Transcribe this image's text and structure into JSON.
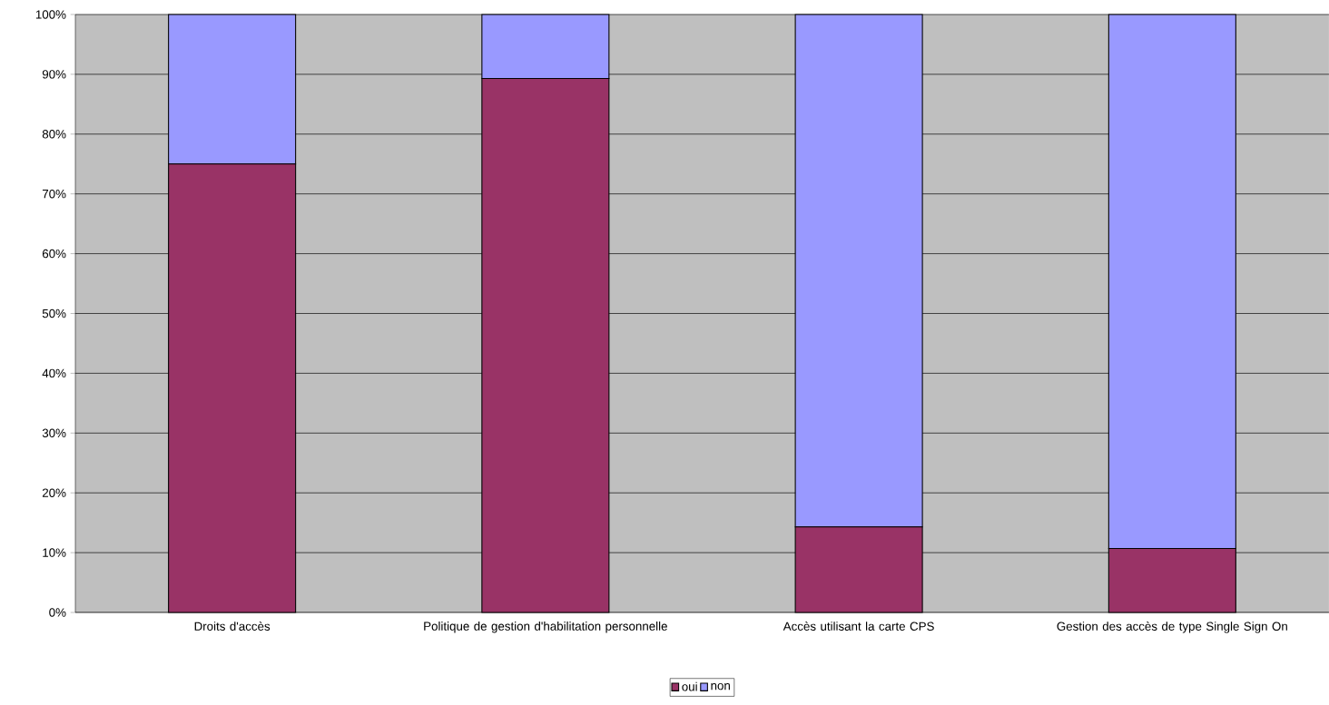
{
  "chart_data": {
    "type": "bar",
    "stacked": true,
    "categories": [
      "Droits d'accès",
      "Politique de gestion d'habilitation personnelle",
      "Accès utilisant la carte CPS",
      "Gestion des accès de type Single Sign On"
    ],
    "series": [
      {
        "name": "oui",
        "color": "#993366",
        "values": [
          75,
          89.3,
          14.3,
          10.7
        ]
      },
      {
        "name": "non",
        "color": "#9999ff",
        "values": [
          25,
          10.7,
          85.7,
          89.3
        ]
      }
    ],
    "ylim": [
      0,
      100
    ],
    "yticks": [
      {
        "value": 0,
        "label": "0%"
      },
      {
        "value": 10,
        "label": "10%"
      },
      {
        "value": 20,
        "label": "20%"
      },
      {
        "value": 30,
        "label": "30%"
      },
      {
        "value": 40,
        "label": "40%"
      },
      {
        "value": 50,
        "label": "50%"
      },
      {
        "value": 60,
        "label": "60%"
      },
      {
        "value": 70,
        "label": "70%"
      },
      {
        "value": 80,
        "label": "80%"
      },
      {
        "value": 90,
        "label": "90%"
      },
      {
        "value": 100,
        "label": "100%"
      }
    ],
    "grid": "y",
    "legend": "bottom"
  }
}
